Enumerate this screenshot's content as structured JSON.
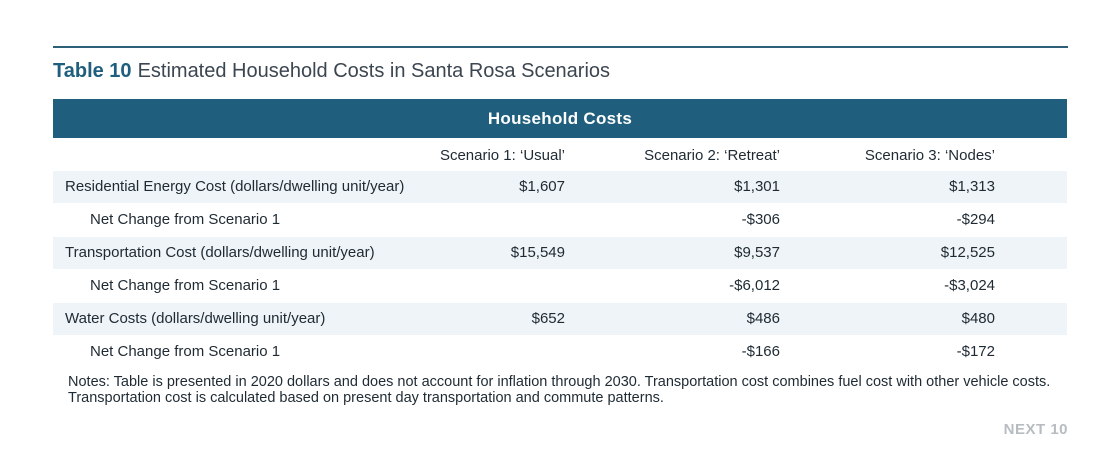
{
  "title": {
    "label": "Table 10",
    "text": "Estimated Household Costs in Santa Rosa Scenarios"
  },
  "table": {
    "header": "Household Costs",
    "columns": [
      "Scenario 1: ‘Usual’",
      "Scenario 2: ‘Retreat’",
      "Scenario 3: ‘Nodes’"
    ],
    "rows": [
      {
        "label": "Residential Energy Cost (dollars/dwelling unit/year)",
        "values": [
          "$1,607",
          "$1,301",
          "$1,313"
        ]
      },
      {
        "label": "Net Change from Scenario 1",
        "values": [
          "",
          "-$306",
          "-$294"
        ]
      },
      {
        "label": "Transportation Cost (dollars/dwelling unit/year)",
        "values": [
          "$15,549",
          "$9,537",
          "$12,525"
        ]
      },
      {
        "label": "Net Change from Scenario 1",
        "values": [
          "",
          "-$6,012",
          "-$3,024"
        ]
      },
      {
        "label": "Water Costs (dollars/dwelling unit/year)",
        "values": [
          "$652",
          "$486",
          "$480"
        ]
      },
      {
        "label": "Net Change from Scenario 1",
        "values": [
          "",
          "-$166",
          "-$172"
        ]
      }
    ]
  },
  "notes": "Notes: Table is presented in 2020 dollars and does not account for inflation through 2030. Transportation cost combines fuel cost with other vehicle costs. Transportation cost is calculated based on present day transportation and commute patterns.",
  "footer": "NEXT 10",
  "colors": {
    "accent": "#1f5f7d",
    "row_shade": "#eef4f7",
    "footer_gray": "#b7bcc1"
  }
}
